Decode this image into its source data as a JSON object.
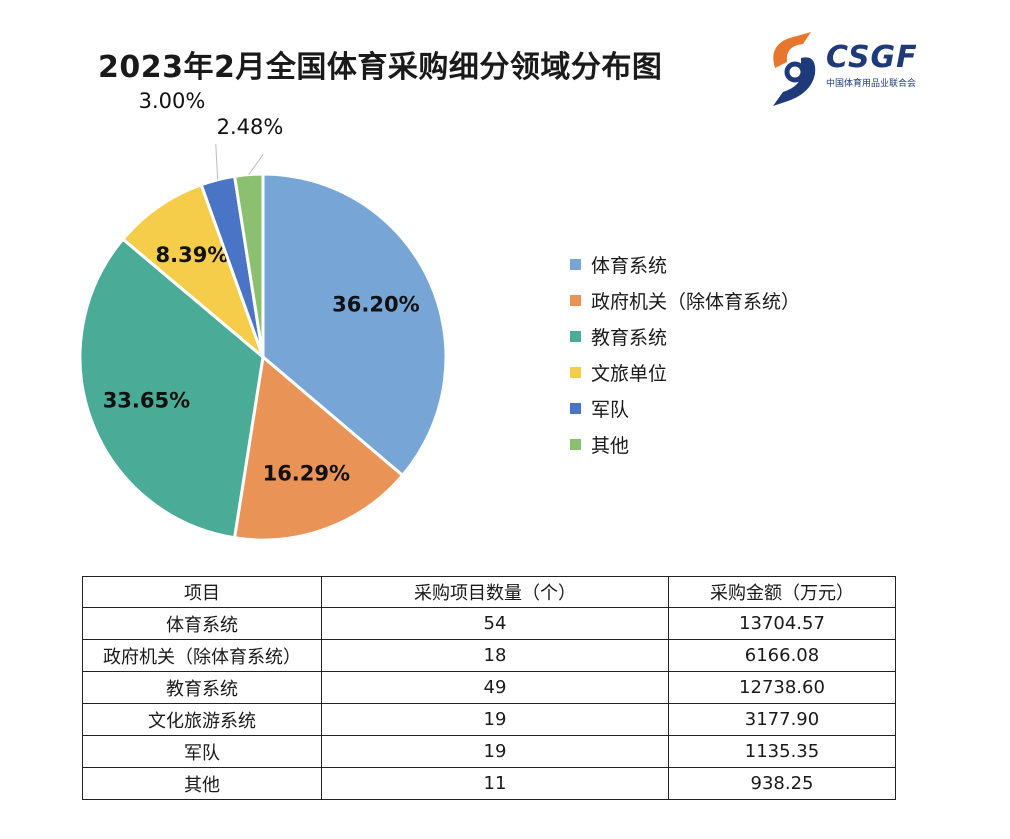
{
  "title": "2023年2月全国体育采购细分领域分布图",
  "logo": {
    "text": "CSGF",
    "subtitle": "中国体育用品业联合会",
    "colors": {
      "orange": "#e8772e",
      "blue": "#1e3a7a"
    }
  },
  "chart_data": {
    "type": "pie",
    "title": "2023年2月全国体育采购细分领域分布图",
    "unit": "%",
    "legend_position": "right",
    "slices": [
      {
        "name": "体育系统",
        "value": 36.2,
        "label": "36.20%",
        "color": "#77a6d6"
      },
      {
        "name": "政府机关（除体育系统）",
        "value": 16.29,
        "label": "16.29%",
        "color": "#ea9356"
      },
      {
        "name": "教育系统",
        "value": 33.65,
        "label": "33.65%",
        "color": "#4aab96"
      },
      {
        "name": "文旅单位",
        "value": 8.39,
        "label": "8.39%",
        "color": "#f6cd4a"
      },
      {
        "name": "军队",
        "value": 3.0,
        "label": "3.00%",
        "color": "#4a74c6"
      },
      {
        "name": "其他",
        "value": 2.48,
        "label": "2.48%",
        "color": "#8cc071"
      }
    ]
  },
  "table": {
    "headers": [
      "项目",
      "采购项目数量（个）",
      "采购金额（万元）"
    ],
    "rows": [
      [
        "体育系统",
        "54",
        "13704.57"
      ],
      [
        "政府机关（除体育系统）",
        "18",
        "6166.08"
      ],
      [
        "教育系统",
        "49",
        "12738.60"
      ],
      [
        "文化旅游系统",
        "19",
        "3177.90"
      ],
      [
        "军队",
        "19",
        "1135.35"
      ],
      [
        "其他",
        "11",
        "938.25"
      ]
    ]
  }
}
